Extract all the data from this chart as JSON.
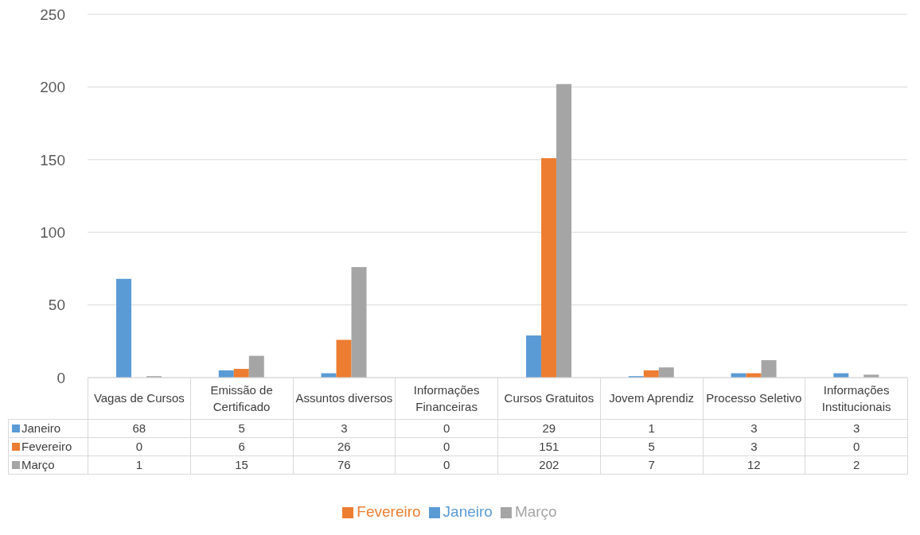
{
  "chart_data": {
    "type": "bar",
    "categories": [
      "Vagas de Cursos",
      "Emissão de Certificado",
      "Assuntos diversos",
      "Informações Financeiras",
      "Cursos Gratuitos",
      "Jovem Aprendiz",
      "Processo Seletivo",
      "Informações Institucionais"
    ],
    "series": [
      {
        "name": "Janeiro",
        "color": "#5b9bd5",
        "values": [
          68,
          5,
          3,
          0,
          29,
          1,
          3,
          3
        ]
      },
      {
        "name": "Fevereiro",
        "color": "#ed7d31",
        "values": [
          0,
          6,
          26,
          0,
          151,
          5,
          3,
          0
        ]
      },
      {
        "name": "Março",
        "color": "#a5a5a5",
        "values": [
          1,
          15,
          76,
          0,
          202,
          7,
          12,
          2
        ]
      }
    ],
    "ylim": [
      0,
      250
    ],
    "yticks": [
      0,
      50,
      100,
      150,
      200,
      250
    ],
    "grid": "y",
    "legend": "bottom",
    "data_labels": true
  }
}
